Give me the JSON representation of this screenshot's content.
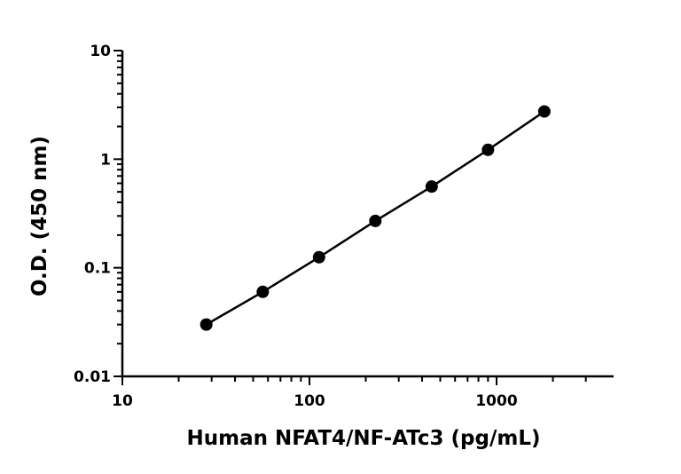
{
  "chart_data": {
    "type": "scatter",
    "title": "",
    "xlabel": "Human NFAT4/NF-ATc3 (pg/mL)",
    "ylabel": "O.D. (450 nm)",
    "x_scale": "log",
    "y_scale": "log",
    "xlim": [
      10,
      3000
    ],
    "ylim": [
      0.01,
      10
    ],
    "x_ticks": [
      "10",
      "100",
      "1000"
    ],
    "y_ticks": [
      "0.01",
      "0.1",
      "1",
      "10"
    ],
    "grid": false,
    "legend": "none",
    "series": [
      {
        "x": [
          28.1,
          56.3,
          112.5,
          225,
          450,
          900,
          1800
        ],
        "y": [
          0.03,
          0.06,
          0.125,
          0.27,
          0.56,
          1.22,
          2.75
        ],
        "marker": "circle",
        "fit_line": true,
        "color": "#000000"
      }
    ]
  }
}
